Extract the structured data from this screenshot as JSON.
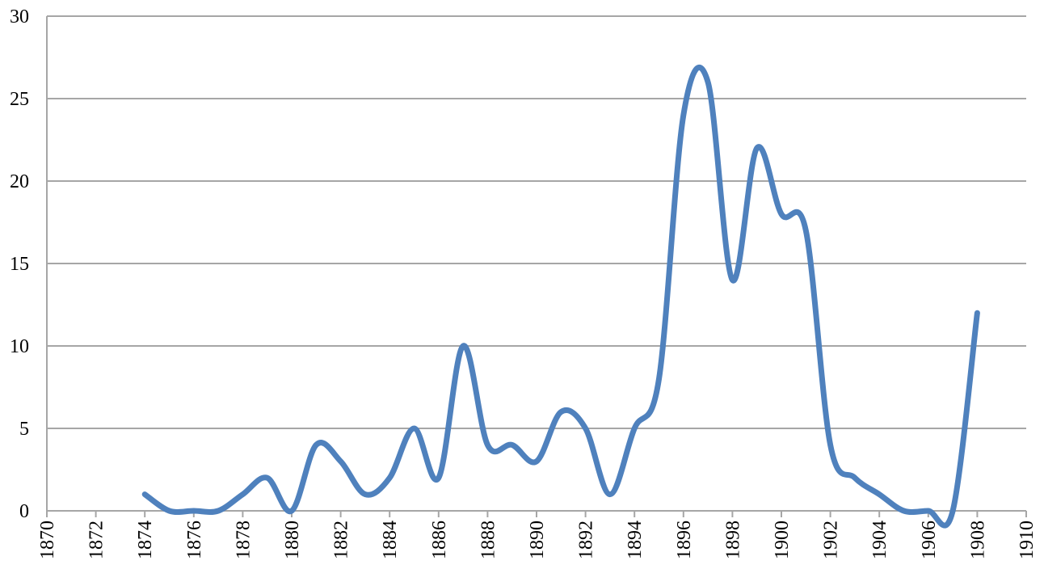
{
  "chart_data": {
    "type": "line",
    "smooth": true,
    "color": "#4f81bd",
    "x": [
      1874,
      1875,
      1876,
      1877,
      1878,
      1879,
      1880,
      1881,
      1882,
      1883,
      1884,
      1885,
      1886,
      1887,
      1888,
      1889,
      1890,
      1891,
      1892,
      1893,
      1894,
      1895,
      1896,
      1897,
      1898,
      1899,
      1900,
      1901,
      1902,
      1903,
      1904,
      1905,
      1906,
      1907,
      1908
    ],
    "values": [
      1,
      0,
      0,
      0,
      1,
      2,
      0,
      4,
      3,
      1,
      2,
      5,
      2,
      10,
      4,
      4,
      3,
      6,
      5,
      1,
      5,
      8,
      24,
      26,
      14,
      22,
      18,
      17,
      4,
      2,
      1,
      0,
      0,
      0,
      12
    ],
    "xlim": [
      1870,
      1910
    ],
    "xticks": [
      1870,
      1872,
      1874,
      1876,
      1878,
      1880,
      1882,
      1884,
      1886,
      1888,
      1890,
      1892,
      1894,
      1896,
      1898,
      1900,
      1902,
      1904,
      1906,
      1908,
      1910
    ],
    "ylim": [
      0,
      30
    ],
    "yticks": [
      0,
      5,
      10,
      15,
      20,
      25,
      30
    ],
    "grid": true
  }
}
